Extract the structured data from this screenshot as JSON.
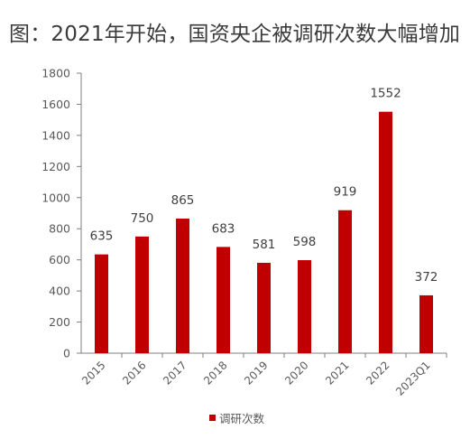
{
  "title": "图：2021年开始，国资央企被调研次数大幅增加",
  "colors": {
    "bar": "#C00000",
    "axis": "#7F7F7F"
  },
  "chart_data": {
    "type": "bar",
    "categories": [
      "2015",
      "2016",
      "2017",
      "2018",
      "2019",
      "2020",
      "2021",
      "2022",
      "2023Q1"
    ],
    "series": [
      {
        "name": "调研次数",
        "values": [
          635,
          750,
          865,
          683,
          581,
          598,
          919,
          1552,
          372
        ]
      }
    ],
    "ylim": [
      0,
      1800
    ],
    "yticks": [
      "0",
      "200",
      "400",
      "600",
      "800",
      "1000",
      "1200",
      "1400",
      "1600",
      "1800"
    ],
    "legend_position": "bottom",
    "grid": false
  }
}
